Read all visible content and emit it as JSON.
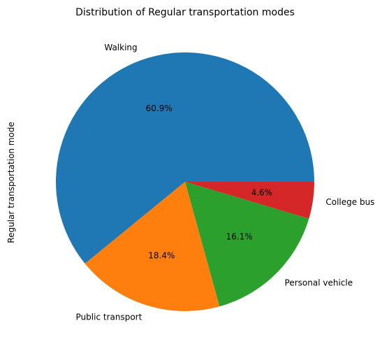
{
  "chart_data": {
    "type": "pie",
    "title": "Distribution of Regular transportation modes",
    "ylabel": "Regular transportation mode",
    "start_angle_deg": 0,
    "direction": "counterclockwise",
    "slices": [
      {
        "label": "Walking",
        "value": 60.9,
        "pct_label": "60.9%",
        "color": "#1f77b4"
      },
      {
        "label": "Public transport",
        "value": 18.4,
        "pct_label": "18.4%",
        "color": "#ff7f0e"
      },
      {
        "label": "Personal vehicle",
        "value": 16.1,
        "pct_label": "16.1%",
        "color": "#2ca02c"
      },
      {
        "label": "College bus",
        "value": 4.6,
        "pct_label": "4.6%",
        "color": "#d62728"
      }
    ]
  }
}
